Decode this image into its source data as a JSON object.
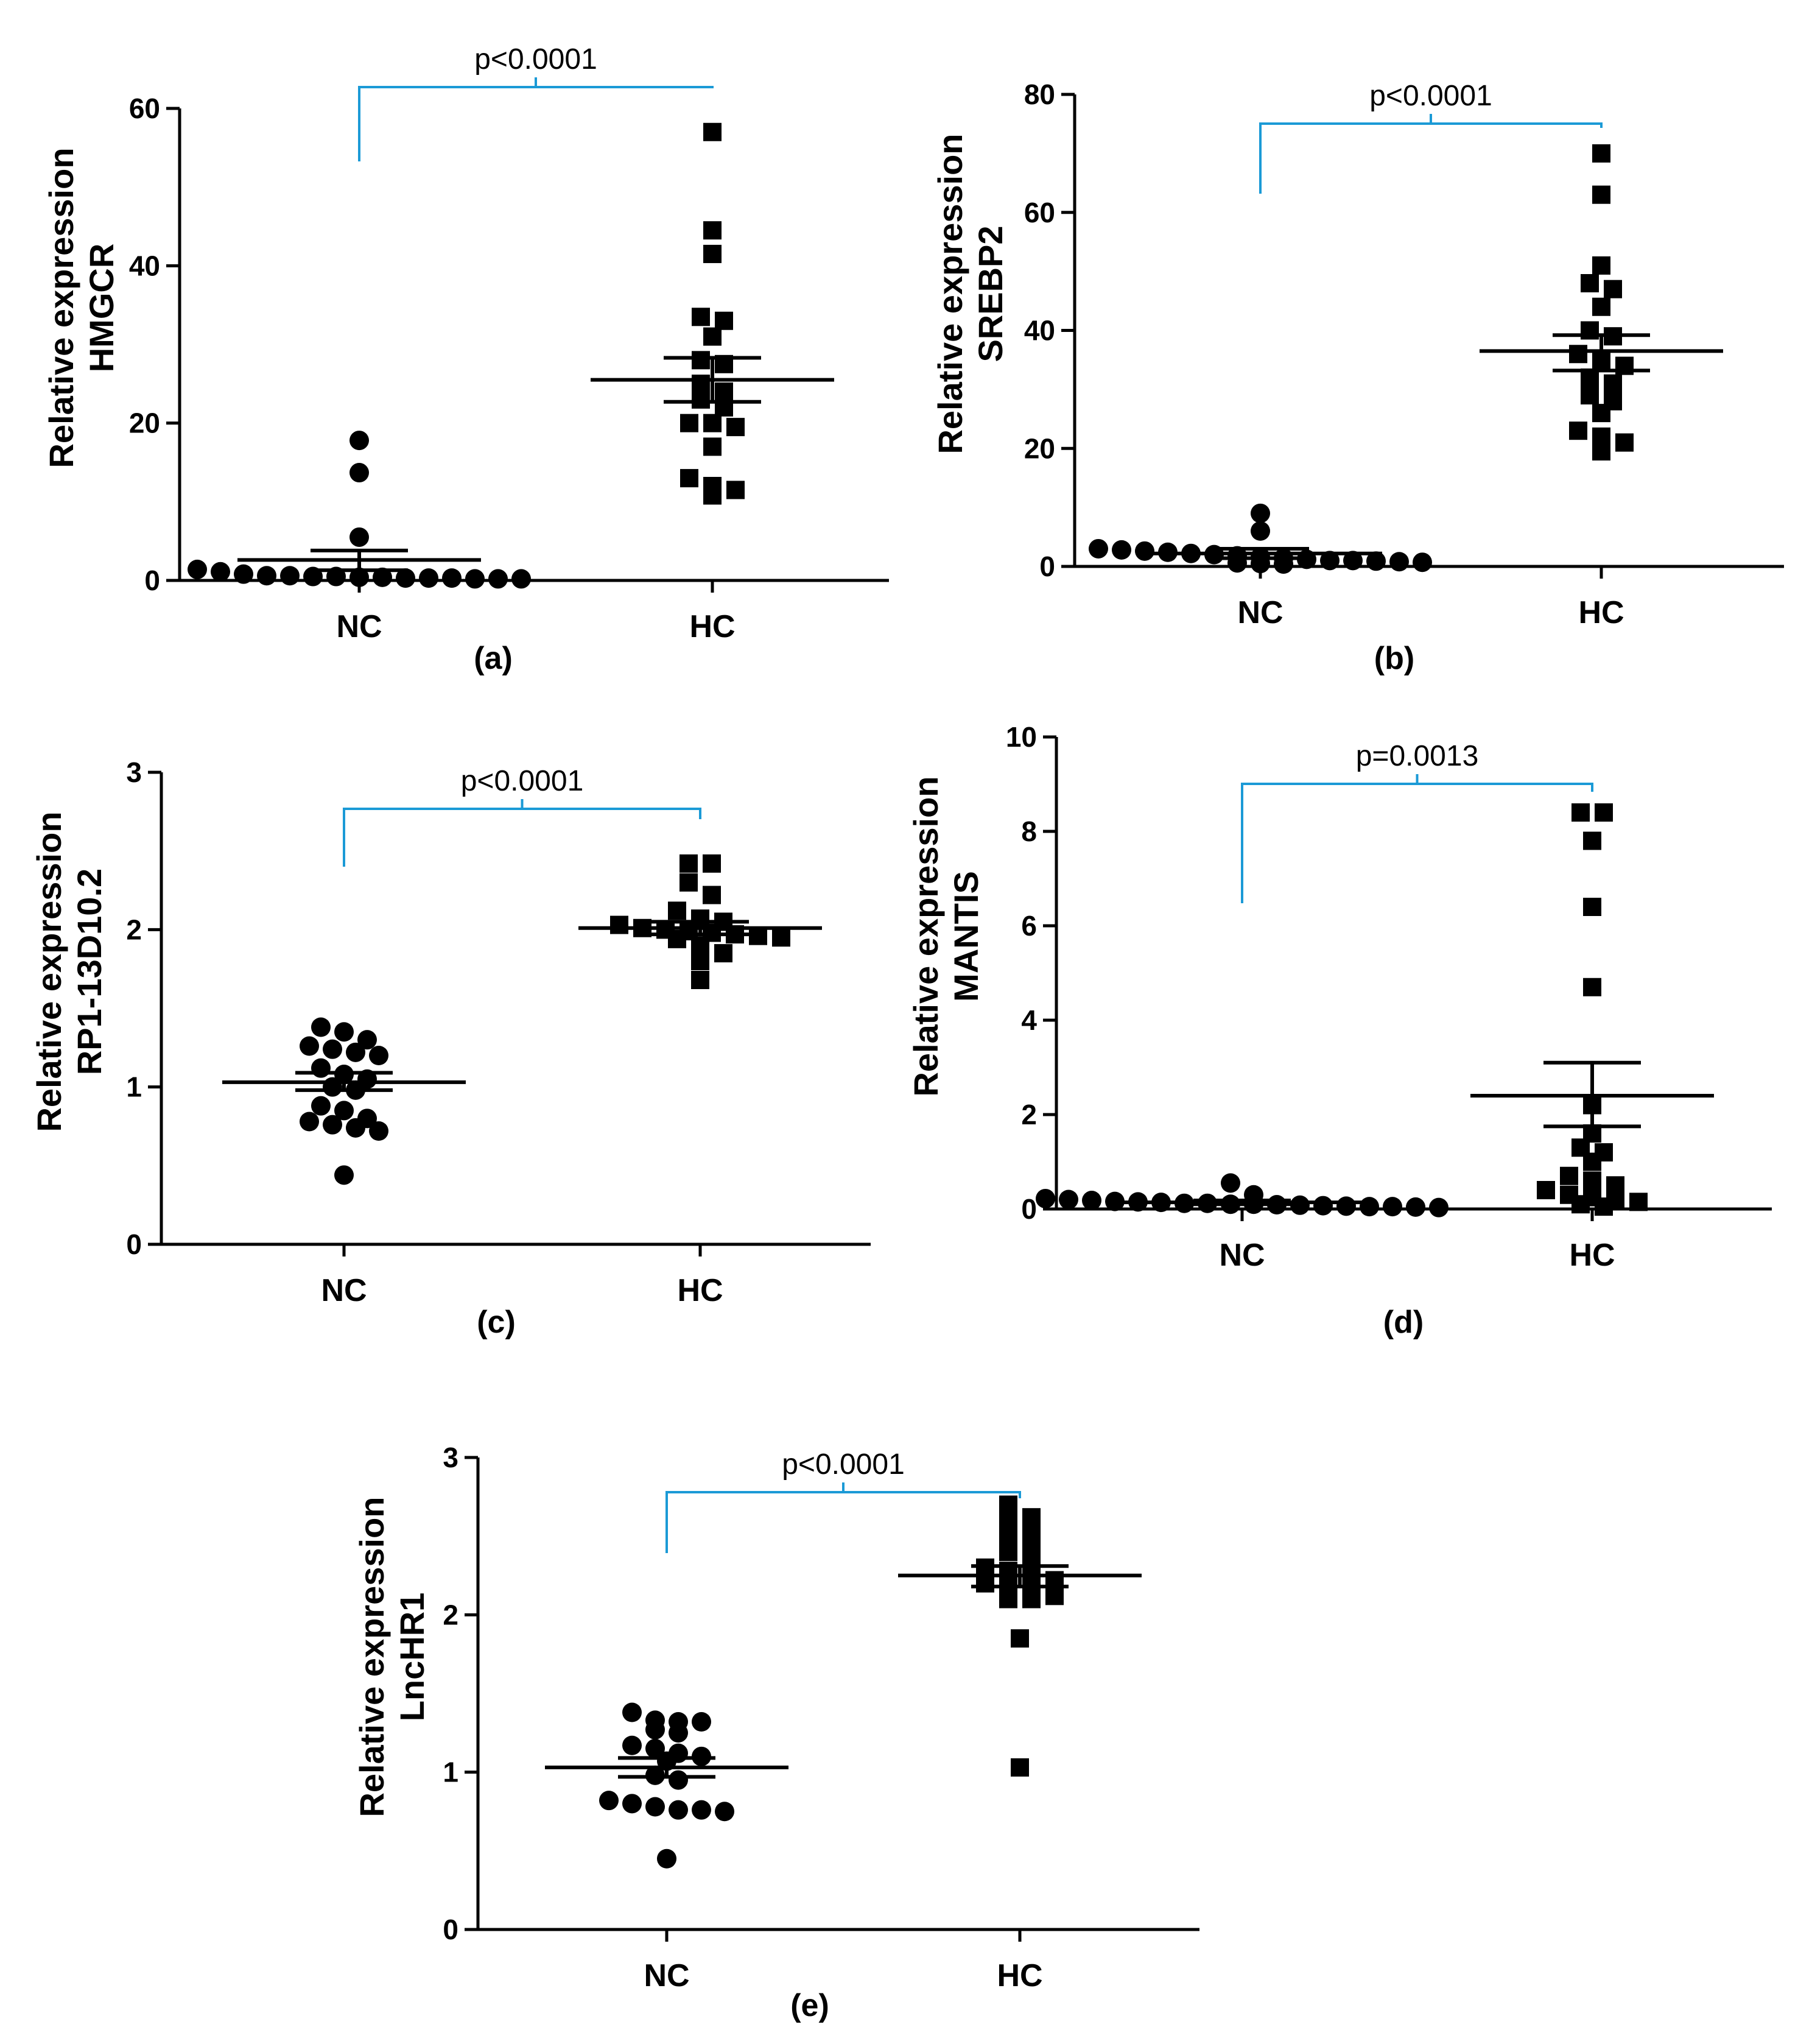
{
  "figure": {
    "panel_labels": [
      "(a)",
      "(b)",
      "(c)",
      "(d)",
      "(e)"
    ]
  },
  "colors": {
    "axis": "#000000",
    "marker": "#000000",
    "bracket": "#1b9ad6"
  },
  "chart_data": [
    {
      "id": "a",
      "type": "scatter",
      "ylabel_line1": "Relative expression",
      "ylabel_line2": "HMGCR",
      "categories": [
        "NC",
        "HC"
      ],
      "ylim": [
        0,
        60
      ],
      "yticks": [
        0,
        20,
        40,
        60
      ],
      "ytick_labels": [
        "0",
        "20",
        "40",
        "60"
      ],
      "annotation": "p<0.0001",
      "series": [
        {
          "category": "NC",
          "marker": "circle",
          "values": [
            17.8,
            13.7,
            5.5,
            1.4,
            1.1,
            0.8,
            0.6,
            0.6,
            0.5,
            0.5,
            0.4,
            0.4,
            0.3,
            0.3,
            0.3,
            0.2,
            0.2,
            0.2
          ],
          "mean": 2.6,
          "sem_low": 1.3,
          "sem_high": 3.8
        },
        {
          "category": "HC",
          "marker": "square",
          "values": [
            57,
            44.5,
            41.5,
            33.5,
            33,
            31,
            28,
            27.5,
            25,
            24,
            23,
            22,
            20,
            20,
            19.5,
            17,
            13,
            12,
            11.5,
            10.8
          ],
          "mean": 25.5,
          "sem_low": 22.7,
          "sem_high": 28.3
        }
      ]
    },
    {
      "id": "b",
      "type": "scatter",
      "ylabel_line1": "Relative expression",
      "ylabel_line2": "SREBP2",
      "categories": [
        "NC",
        "HC"
      ],
      "ylim": [
        0,
        80
      ],
      "yticks": [
        0,
        20,
        40,
        60,
        80
      ],
      "ytick_labels": [
        "0",
        "20",
        "40",
        "60",
        "80"
      ],
      "annotation": "p<0.0001",
      "series": [
        {
          "category": "NC",
          "marker": "circle",
          "values": [
            9,
            6,
            3,
            2.8,
            2.6,
            2.4,
            2.2,
            2,
            1.8,
            1.6,
            1.4,
            1.2,
            1,
            1,
            0.9,
            0.8,
            0.7,
            0.6,
            0.5,
            0.4
          ],
          "mean": 2.2,
          "sem_low": 1.4,
          "sem_high": 3.0
        },
        {
          "category": "HC",
          "marker": "square",
          "values": [
            70,
            63,
            51,
            48,
            47,
            44,
            40,
            39,
            36,
            35,
            34,
            32,
            31,
            29,
            28,
            26,
            23,
            22,
            21,
            19.5
          ],
          "mean": 36.5,
          "sem_low": 33.2,
          "sem_high": 39.2
        }
      ]
    },
    {
      "id": "c",
      "type": "scatter",
      "ylabel_line1": "Relative expression",
      "ylabel_line2": "RP1-13D10.2",
      "categories": [
        "NC",
        "HC"
      ],
      "ylim": [
        0,
        3
      ],
      "yticks": [
        0,
        1,
        2,
        3
      ],
      "ytick_labels": [
        "0",
        "1",
        "2",
        "3"
      ],
      "annotation": "p<0.0001",
      "series": [
        {
          "category": "NC",
          "marker": "circle",
          "values": [
            1.38,
            1.35,
            1.3,
            1.26,
            1.24,
            1.22,
            1.2,
            1.12,
            1.08,
            1.05,
            1.0,
            0.98,
            0.88,
            0.85,
            0.8,
            0.78,
            0.76,
            0.74,
            0.72,
            0.44
          ],
          "mean": 1.03,
          "sem_low": 0.98,
          "sem_high": 1.09
        },
        {
          "category": "HC",
          "marker": "square",
          "values": [
            2.42,
            2.42,
            2.3,
            2.22,
            2.12,
            2.07,
            2.05,
            2.03,
            2.01,
            2.0,
            1.99,
            1.98,
            1.97,
            1.96,
            1.95,
            1.94,
            1.9,
            1.85,
            1.8,
            1.68
          ],
          "mean": 2.01,
          "sem_low": 1.97,
          "sem_high": 2.05
        }
      ]
    },
    {
      "id": "d",
      "type": "scatter",
      "ylabel_line1": "Relative expression",
      "ylabel_line2": "MANTIS",
      "categories": [
        "NC",
        "HC"
      ],
      "ylim": [
        0,
        10
      ],
      "yticks": [
        0,
        2,
        4,
        6,
        8,
        10
      ],
      "ytick_labels": [
        "0",
        "2",
        "4",
        "6",
        "8",
        "10"
      ],
      "annotation": "p=0.0013",
      "series": [
        {
          "category": "NC",
          "marker": "circle",
          "values": [
            0.55,
            0.3,
            0.22,
            0.2,
            0.18,
            0.16,
            0.15,
            0.14,
            0.12,
            0.12,
            0.1,
            0.1,
            0.09,
            0.08,
            0.07,
            0.06,
            0.05,
            0.05,
            0.04,
            0.03
          ],
          "mean": 0.14,
          "sem_low": 0.1,
          "sem_high": 0.18
        },
        {
          "category": "HC",
          "marker": "square",
          "values": [
            8.4,
            8.4,
            7.8,
            6.4,
            4.7,
            2.2,
            1.6,
            1.3,
            1.2,
            1.0,
            0.7,
            0.6,
            0.5,
            0.4,
            0.3,
            0.25,
            0.2,
            0.15,
            0.1,
            0.05
          ],
          "mean": 2.4,
          "sem_low": 1.75,
          "sem_high": 3.1
        }
      ]
    },
    {
      "id": "e",
      "type": "scatter",
      "ylabel_line1": "Relative expression",
      "ylabel_line2": "LncHR1",
      "categories": [
        "NC",
        "HC"
      ],
      "ylim": [
        0,
        3
      ],
      "yticks": [
        0,
        1,
        2,
        3
      ],
      "ytick_labels": [
        "0",
        "1",
        "2",
        "3"
      ],
      "annotation": "p<0.0001",
      "series": [
        {
          "category": "NC",
          "marker": "circle",
          "values": [
            1.38,
            1.33,
            1.32,
            1.32,
            1.27,
            1.25,
            1.17,
            1.15,
            1.12,
            1.1,
            1.07,
            0.98,
            0.95,
            0.82,
            0.8,
            0.78,
            0.76,
            0.76,
            0.75,
            0.45
          ],
          "mean": 1.03,
          "sem_low": 0.97,
          "sem_high": 1.09
        },
        {
          "category": "HC",
          "marker": "square",
          "values": [
            2.7,
            2.62,
            2.6,
            2.55,
            2.5,
            2.45,
            2.4,
            2.35,
            2.3,
            2.28,
            2.25,
            2.22,
            2.2,
            2.18,
            2.15,
            2.12,
            2.1,
            2.1,
            1.85,
            1.03
          ],
          "mean": 2.25,
          "sem_low": 2.18,
          "sem_high": 2.31
        }
      ]
    }
  ]
}
